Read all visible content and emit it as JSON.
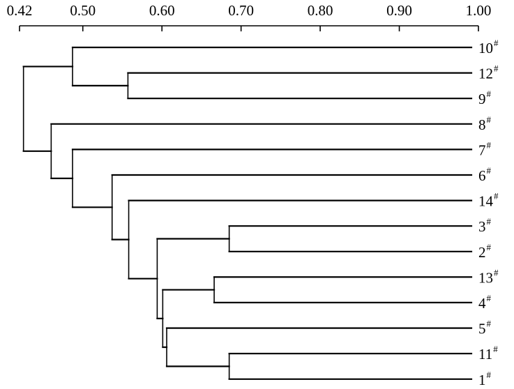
{
  "axis": {
    "ticks": [
      {
        "value": 0.42,
        "label": "0.42"
      },
      {
        "value": 0.5,
        "label": "0.50"
      },
      {
        "value": 0.6,
        "label": "0.60"
      },
      {
        "value": 0.7,
        "label": "0.70"
      },
      {
        "value": 0.8,
        "label": "0.80"
      },
      {
        "value": 0.9,
        "label": "0.90"
      },
      {
        "value": 1.0,
        "label": "1.00"
      }
    ],
    "range": [
      0.42,
      1.0
    ],
    "tick_direction": "down"
  },
  "leaves": [
    {
      "id": "10",
      "label": "10",
      "sup": "#"
    },
    {
      "id": "12",
      "label": "12",
      "sup": "#"
    },
    {
      "id": "9",
      "label": "9",
      "sup": "#"
    },
    {
      "id": "8",
      "label": "8",
      "sup": "#"
    },
    {
      "id": "7",
      "label": "7",
      "sup": "#"
    },
    {
      "id": "6",
      "label": "6",
      "sup": "#"
    },
    {
      "id": "14",
      "label": "14",
      "sup": "#"
    },
    {
      "id": "3",
      "label": "3",
      "sup": "#"
    },
    {
      "id": "2",
      "label": "2",
      "sup": "#"
    },
    {
      "id": "13",
      "label": "13",
      "sup": "#"
    },
    {
      "id": "4",
      "label": "4",
      "sup": "#"
    },
    {
      "id": "5",
      "label": "5",
      "sup": "#"
    },
    {
      "id": "11",
      "label": "11",
      "sup": "#"
    },
    {
      "id": "1",
      "label": "1",
      "sup": "#"
    }
  ],
  "merges": [
    {
      "id": "A",
      "children": [
        "12",
        "9"
      ],
      "similarity": 0.557
    },
    {
      "id": "B",
      "children": [
        "10",
        "A"
      ],
      "similarity": 0.487
    },
    {
      "id": "C",
      "children": [
        "3",
        "2"
      ],
      "similarity": 0.685
    },
    {
      "id": "D",
      "children": [
        "13",
        "4"
      ],
      "similarity": 0.666
    },
    {
      "id": "E",
      "children": [
        "11",
        "1"
      ],
      "similarity": 0.685
    },
    {
      "id": "F",
      "children": [
        "5",
        "E"
      ],
      "similarity": 0.606
    },
    {
      "id": "G",
      "children": [
        "D",
        "F"
      ],
      "similarity": 0.601
    },
    {
      "id": "H",
      "children": [
        "C",
        "G"
      ],
      "similarity": 0.594
    },
    {
      "id": "I",
      "children": [
        "14",
        "H"
      ],
      "similarity": 0.558
    },
    {
      "id": "J",
      "children": [
        "6",
        "I"
      ],
      "similarity": 0.537
    },
    {
      "id": "K",
      "children": [
        "7",
        "J"
      ],
      "similarity": 0.487
    },
    {
      "id": "L",
      "children": [
        "8",
        "K"
      ],
      "similarity": 0.46
    },
    {
      "id": "M",
      "children": [
        "B",
        "L"
      ],
      "similarity": 0.425
    }
  ],
  "style": {
    "line_color": "#000000",
    "text_color": "#000000"
  }
}
